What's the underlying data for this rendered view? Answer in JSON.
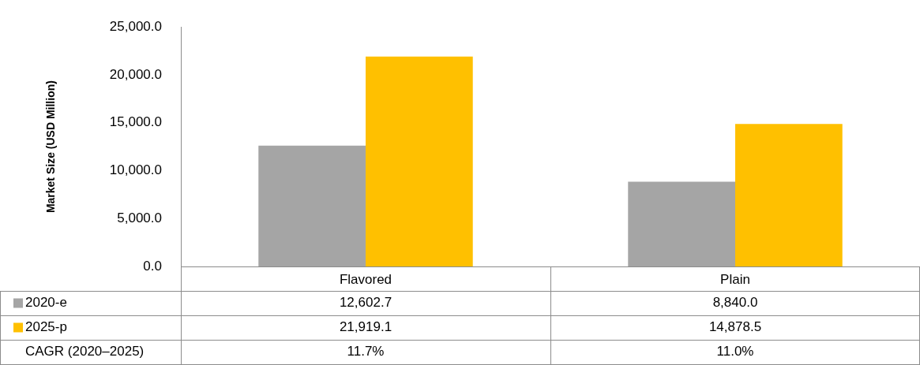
{
  "chart_data": {
    "type": "bar",
    "ylabel": "Market Size (USD Million)",
    "categories": [
      "Flavored",
      "Plain"
    ],
    "series": [
      {
        "name": "2020-e",
        "color": "#a5a5a5",
        "values": [
          12602.7,
          8840.0
        ],
        "value_labels": [
          "12,602.7",
          "8,840.0"
        ]
      },
      {
        "name": "2025-p",
        "color": "#ffc000",
        "values": [
          21919.1,
          14878.5
        ],
        "value_labels": [
          "21,919.1",
          "14,878.5"
        ]
      }
    ],
    "ylim": [
      0,
      25000
    ],
    "yticks": [
      {
        "value": 0,
        "label": "0.0"
      },
      {
        "value": 5000,
        "label": "5,000.0"
      },
      {
        "value": 10000,
        "label": "10,000.0"
      },
      {
        "value": 15000,
        "label": "15,000.0"
      },
      {
        "value": 20000,
        "label": "20,000.0"
      },
      {
        "value": 25000,
        "label": "25,000.0"
      }
    ],
    "grid": false,
    "legend": "bottom left",
    "annotations": [
      "CAGR (2020–2025)",
      "11.7%",
      "11.0%"
    ]
  }
}
